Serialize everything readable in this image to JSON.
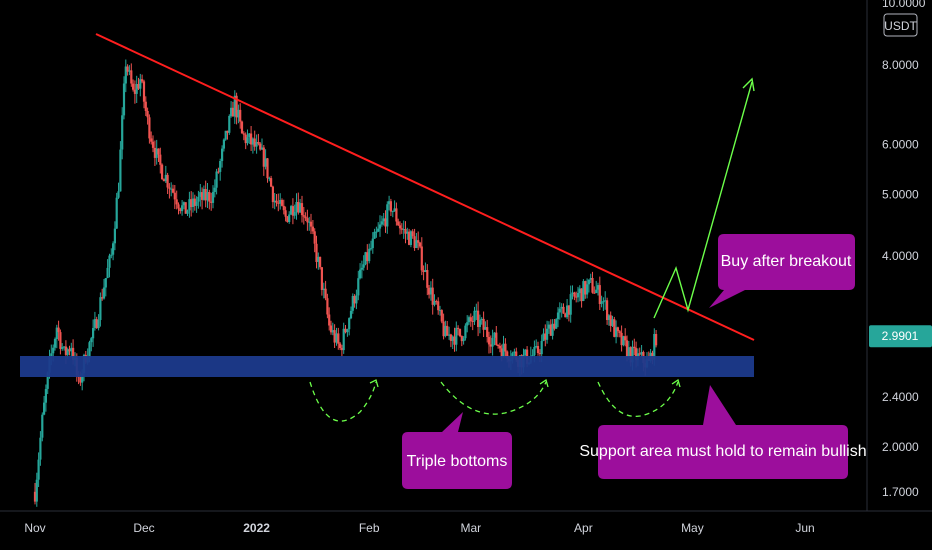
{
  "chart_data": {
    "type": "candlestick",
    "symbol_currency": "USDT",
    "scale": "log",
    "grid": false,
    "y_ticks": [
      {
        "value": 10.0,
        "label": "10.0000"
      },
      {
        "value": 8.0,
        "label": "8.0000"
      },
      {
        "value": 6.0,
        "label": "6.0000"
      },
      {
        "value": 5.0,
        "label": "5.0000"
      },
      {
        "value": 4.0,
        "label": "4.0000"
      },
      {
        "value": 2.4,
        "label": "2.4000"
      },
      {
        "value": 2.0,
        "label": "2.0000"
      },
      {
        "value": 1.7,
        "label": "1.7000"
      }
    ],
    "last_price": {
      "value": 2.9901,
      "label": "2.9901",
      "color": "#26a69a"
    },
    "x_ticks": [
      {
        "date": "2021-11-01",
        "label": "Nov",
        "bold": false
      },
      {
        "date": "2021-12-01",
        "label": "Dec",
        "bold": false
      },
      {
        "date": "2022-01-01",
        "label": "2022",
        "bold": true
      },
      {
        "date": "2022-02-01",
        "label": "Feb",
        "bold": false
      },
      {
        "date": "2022-03-01",
        "label": "Mar",
        "bold": false
      },
      {
        "date": "2022-04-01",
        "label": "Apr",
        "bold": false
      },
      {
        "date": "2022-05-01",
        "label": "May",
        "bold": false
      },
      {
        "date": "2022-06-01",
        "label": "Jun",
        "bold": false
      }
    ],
    "x_range": [
      "2021-10-29",
      "2022-06-18"
    ],
    "y_range": [
      1.6,
      10.2
    ],
    "colors": {
      "up": "#26a69a",
      "down": "#ef5350",
      "trendline": "#ff1e1e",
      "support": "#1c3a8c",
      "projection": "#6cff4a",
      "callout": "#9c0e9c"
    },
    "candle_path_anchors": [
      [
        "2021-11-01",
        1.7
      ],
      [
        "2021-11-03",
        2.2
      ],
      [
        "2021-11-05",
        2.7
      ],
      [
        "2021-11-07",
        3.1
      ],
      [
        "2021-11-09",
        2.8
      ],
      [
        "2021-11-11",
        2.9
      ],
      [
        "2021-11-13",
        2.5
      ],
      [
        "2021-11-15",
        2.8
      ],
      [
        "2021-11-17",
        3.0
      ],
      [
        "2021-11-20",
        3.6
      ],
      [
        "2021-11-22",
        4.0
      ],
      [
        "2021-11-24",
        5.2
      ],
      [
        "2021-11-26",
        8.1
      ],
      [
        "2021-11-28",
        7.2
      ],
      [
        "2021-11-30",
        7.6
      ],
      [
        "2021-12-02",
        6.5
      ],
      [
        "2021-12-05",
        5.6
      ],
      [
        "2021-12-08",
        5.2
      ],
      [
        "2021-12-12",
        4.7
      ],
      [
        "2021-12-16",
        4.9
      ],
      [
        "2021-12-20",
        5.0
      ],
      [
        "2021-12-24",
        6.3
      ],
      [
        "2021-12-26",
        7.0
      ],
      [
        "2021-12-28",
        6.2
      ],
      [
        "2021-12-31",
        6.0
      ],
      [
        "2022-01-03",
        5.7
      ],
      [
        "2022-01-06",
        4.9
      ],
      [
        "2022-01-09",
        4.6
      ],
      [
        "2022-01-12",
        4.9
      ],
      [
        "2022-01-15",
        4.6
      ],
      [
        "2022-01-18",
        3.9
      ],
      [
        "2022-01-21",
        3.1
      ],
      [
        "2022-01-24",
        2.85
      ],
      [
        "2022-01-27",
        3.3
      ],
      [
        "2022-01-30",
        3.8
      ],
      [
        "2022-02-03",
        4.3
      ],
      [
        "2022-02-07",
        4.8
      ],
      [
        "2022-02-10",
        4.4
      ],
      [
        "2022-02-14",
        4.2
      ],
      [
        "2022-02-18",
        3.5
      ],
      [
        "2022-02-22",
        3.0
      ],
      [
        "2022-02-26",
        3.0
      ],
      [
        "2022-03-02",
        3.2
      ],
      [
        "2022-03-06",
        3.0
      ],
      [
        "2022-03-10",
        2.85
      ],
      [
        "2022-03-15",
        2.75
      ],
      [
        "2022-03-19",
        2.8
      ],
      [
        "2022-03-23",
        3.1
      ],
      [
        "2022-03-27",
        3.3
      ],
      [
        "2022-03-31",
        3.5
      ],
      [
        "2022-04-03",
        3.6
      ],
      [
        "2022-04-06",
        3.45
      ],
      [
        "2022-04-10",
        3.0
      ],
      [
        "2022-04-14",
        2.8
      ],
      [
        "2022-04-17",
        2.75
      ],
      [
        "2022-04-19",
        2.7
      ],
      [
        "2022-04-21",
        2.99
      ]
    ]
  },
  "annotations": {
    "callouts": [
      {
        "text": "Buy after breakout"
      },
      {
        "text": "Triple bottoms"
      },
      {
        "text": "Support area must hold to remain bullish"
      }
    ]
  }
}
